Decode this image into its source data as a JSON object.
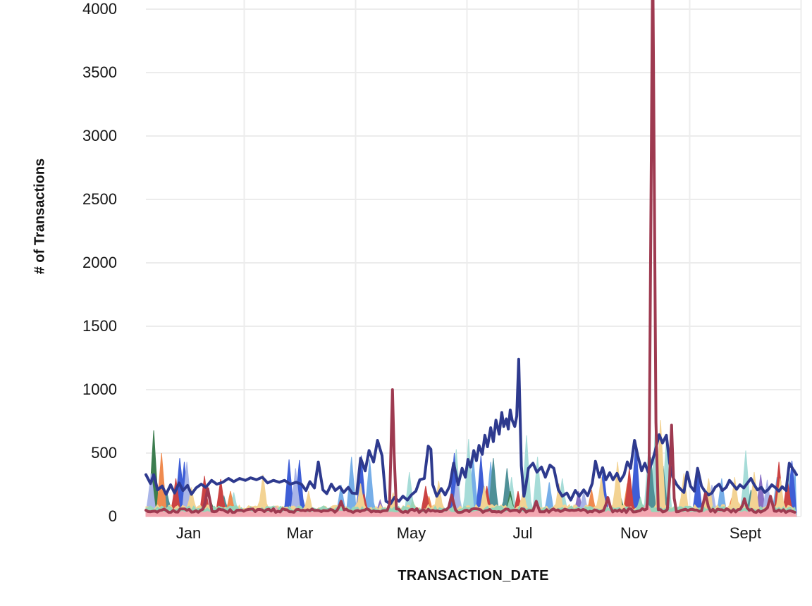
{
  "page": {
    "background": "#ffffff"
  },
  "chart_data": {
    "type": "line",
    "title": "",
    "xlabel": "TRANSACTION_DATE",
    "ylabel": "# of Transactions",
    "x_tick_labels": [
      "Jan",
      "Mar",
      "May",
      "Jul",
      "Nov",
      "Sept"
    ],
    "y_ticks": [
      0,
      500,
      1000,
      1500,
      2000,
      2500,
      3000,
      3500,
      4000
    ],
    "ylim": [
      0,
      4070
    ],
    "x_unit": "percent_of_axis",
    "grid": true,
    "grid_color": "#ececec",
    "tick_color": "#151515",
    "legend": "none",
    "note": "multi-series daily transaction counts; x given as percent across the date axis; minor series encoded as baseline noise (base/amp) plus explicit peaks [x,value]",
    "series": [
      {
        "name": "purple",
        "kind": "area",
        "color": "#8a70c4",
        "base": 12,
        "amp": 14,
        "seed": 7,
        "peaks": [
          [
            36,
            130
          ],
          [
            66.5,
            200
          ],
          [
            94.5,
            330
          ]
        ]
      },
      {
        "name": "light-blue",
        "kind": "area",
        "color": "#76aee8",
        "base": 22,
        "amp": 26,
        "seed": 2,
        "peaks": [
          [
            30,
            250
          ],
          [
            31.6,
            470
          ],
          [
            34.4,
            450
          ],
          [
            50.3,
            470
          ],
          [
            53,
            430
          ],
          [
            62,
            270
          ],
          [
            75.5,
            200
          ],
          [
            88.5,
            300
          ],
          [
            97,
            310
          ],
          [
            99.8,
            370
          ]
        ]
      },
      {
        "name": "pale-cyan",
        "kind": "area",
        "color": "#a6dcd8",
        "base": 28,
        "amp": 30,
        "seed": 3,
        "peaks": [
          [
            13.5,
            190
          ],
          [
            40.5,
            350
          ],
          [
            47.7,
            530
          ],
          [
            49.6,
            610
          ],
          [
            56.2,
            310
          ],
          [
            58.5,
            640
          ],
          [
            60.2,
            470
          ],
          [
            64,
            300
          ],
          [
            77.3,
            560
          ],
          [
            78.4,
            790
          ],
          [
            80,
            600
          ],
          [
            92.2,
            520
          ],
          [
            99,
            340
          ]
        ]
      },
      {
        "name": "teal",
        "kind": "area",
        "color": "#4f9097",
        "base": 38,
        "amp": 30,
        "seed": 4,
        "peaks": [
          [
            3.2,
            200
          ],
          [
            12,
            160
          ],
          [
            53.4,
            460
          ],
          [
            55.5,
            380
          ],
          [
            77.6,
            470
          ],
          [
            79.5,
            400
          ],
          [
            93,
            210
          ]
        ]
      },
      {
        "name": "green",
        "kind": "area",
        "color": "#3c7d4f",
        "base": 26,
        "amp": 22,
        "seed": 5,
        "peaks": [
          [
            1.2,
            680
          ],
          [
            10,
            120
          ],
          [
            56,
            200
          ],
          [
            73,
            150
          ]
        ]
      },
      {
        "name": "orange",
        "kind": "area",
        "color": "#ef8a4f",
        "base": 26,
        "amp": 22,
        "seed": 6,
        "peaks": [
          [
            2.4,
            500
          ],
          [
            13,
            200
          ],
          [
            43.5,
            160
          ],
          [
            68.5,
            210
          ],
          [
            74,
            260
          ],
          [
            90,
            140
          ]
        ]
      },
      {
        "name": "royal-blue",
        "kind": "area",
        "color": "#3e5ed6",
        "base": 28,
        "amp": 34,
        "seed": 8,
        "peaks": [
          [
            5.2,
            460
          ],
          [
            5.9,
            430
          ],
          [
            22,
            450
          ],
          [
            23.6,
            445
          ],
          [
            33.1,
            480
          ],
          [
            47.4,
            500
          ],
          [
            51.5,
            480
          ],
          [
            70.3,
            380
          ],
          [
            75.3,
            600
          ],
          [
            84.8,
            370
          ],
          [
            99.3,
            440
          ]
        ]
      },
      {
        "name": "red",
        "kind": "area",
        "color": "#cb4343",
        "base": 26,
        "amp": 28,
        "seed": 9,
        "peaks": [
          [
            4.6,
            300
          ],
          [
            9,
            320
          ],
          [
            11.5,
            295
          ],
          [
            33.5,
            180
          ],
          [
            43,
            240
          ],
          [
            52.4,
            240
          ],
          [
            57.2,
            200
          ],
          [
            74.3,
            380
          ],
          [
            97.3,
            430
          ],
          [
            98.6,
            300
          ]
        ]
      },
      {
        "name": "periwinkle",
        "kind": "area",
        "color": "#a9b5e8",
        "base": 16,
        "amp": 18,
        "seed": 10,
        "peaks": [
          [
            0.8,
            340
          ],
          [
            6.3,
            430
          ],
          [
            23,
            380
          ],
          [
            47.8,
            300
          ],
          [
            67.3,
            200
          ],
          [
            87,
            250
          ],
          [
            95.5,
            290
          ]
        ]
      },
      {
        "name": "khaki",
        "kind": "area",
        "color": "#f3d393",
        "base": 50,
        "amp": 45,
        "seed": 11,
        "peaks": [
          [
            7,
            230
          ],
          [
            18,
            330
          ],
          [
            25,
            200
          ],
          [
            33,
            260
          ],
          [
            38,
            190
          ],
          [
            45,
            280
          ],
          [
            52,
            240
          ],
          [
            58,
            210
          ],
          [
            63.5,
            260
          ],
          [
            70,
            310
          ],
          [
            72.5,
            430
          ],
          [
            79.1,
            760
          ],
          [
            82.7,
            340
          ],
          [
            86.5,
            300
          ],
          [
            90.5,
            310
          ],
          [
            93.5,
            350
          ],
          [
            97.5,
            300
          ]
        ]
      },
      {
        "name": "mint",
        "kind": "area",
        "color": "#97d6b9",
        "base": 48,
        "amp": 36,
        "seed": 12,
        "peaks": [
          [
            41,
            130
          ],
          [
            56,
            150
          ],
          [
            76,
            150
          ],
          [
            96,
            140
          ]
        ]
      },
      {
        "name": "pink",
        "kind": "area",
        "color": "#f3a7b1",
        "base": 30,
        "amp": 20,
        "seed": 13,
        "peaks": [
          [
            20,
            80
          ],
          [
            60,
            95
          ],
          [
            77,
            125
          ],
          [
            96,
            105
          ]
        ]
      },
      {
        "name": "navy",
        "kind": "line",
        "color": "#2e3a8e",
        "stroke_width": 4,
        "points": [
          [
            0,
            330
          ],
          [
            0.7,
            260
          ],
          [
            1.2,
            330
          ],
          [
            1.8,
            210
          ],
          [
            2.5,
            240
          ],
          [
            3.1,
            175
          ],
          [
            3.8,
            250
          ],
          [
            4.4,
            185
          ],
          [
            5.1,
            265
          ],
          [
            5.7,
            205
          ],
          [
            6.4,
            245
          ],
          [
            7,
            175
          ],
          [
            7.7,
            225
          ],
          [
            8.5,
            255
          ],
          [
            9.2,
            230
          ],
          [
            10.1,
            285
          ],
          [
            10.9,
            255
          ],
          [
            11.8,
            270
          ],
          [
            12.7,
            300
          ],
          [
            13.5,
            275
          ],
          [
            14.4,
            300
          ],
          [
            15.3,
            285
          ],
          [
            16.1,
            305
          ],
          [
            17,
            290
          ],
          [
            17.9,
            310
          ],
          [
            18.7,
            265
          ],
          [
            19.6,
            285
          ],
          [
            20.5,
            270
          ],
          [
            21.3,
            285
          ],
          [
            22.2,
            255
          ],
          [
            23.1,
            270
          ],
          [
            23.9,
            255
          ],
          [
            24.6,
            205
          ],
          [
            25.2,
            275
          ],
          [
            25.9,
            225
          ],
          [
            26.5,
            430
          ],
          [
            27.2,
            210
          ],
          [
            27.8,
            180
          ],
          [
            28.5,
            255
          ],
          [
            29.1,
            205
          ],
          [
            29.8,
            235
          ],
          [
            30.4,
            190
          ],
          [
            31.1,
            230
          ],
          [
            31.7,
            185
          ],
          [
            32.4,
            180
          ],
          [
            33,
            460
          ],
          [
            33.7,
            360
          ],
          [
            34.3,
            520
          ],
          [
            35,
            430
          ],
          [
            35.6,
            600
          ],
          [
            36.3,
            480
          ],
          [
            36.9,
            120
          ],
          [
            37.6,
            100
          ],
          [
            38.2,
            150
          ],
          [
            38.9,
            120
          ],
          [
            39.5,
            160
          ],
          [
            40.2,
            130
          ],
          [
            40.8,
            170
          ],
          [
            41.5,
            200
          ],
          [
            42.1,
            290
          ],
          [
            42.8,
            300
          ],
          [
            43.4,
            555
          ],
          [
            43.8,
            530
          ],
          [
            44.1,
            250
          ],
          [
            44.7,
            160
          ],
          [
            45.4,
            220
          ],
          [
            46,
            170
          ],
          [
            46.7,
            240
          ],
          [
            47.3,
            420
          ],
          [
            48,
            250
          ],
          [
            48.6,
            380
          ],
          [
            49.1,
            310
          ],
          [
            49.5,
            450
          ],
          [
            49.9,
            390
          ],
          [
            50.4,
            520
          ],
          [
            50.8,
            440
          ],
          [
            51.2,
            560
          ],
          [
            51.7,
            490
          ],
          [
            52.1,
            640
          ],
          [
            52.5,
            550
          ],
          [
            53,
            700
          ],
          [
            53.4,
            590
          ],
          [
            53.8,
            760
          ],
          [
            54.3,
            650
          ],
          [
            54.7,
            820
          ],
          [
            55,
            710
          ],
          [
            55.4,
            770
          ],
          [
            55.7,
            690
          ],
          [
            56,
            840
          ],
          [
            56.3,
            760
          ],
          [
            56.7,
            710
          ],
          [
            57,
            790
          ],
          [
            57.3,
            1240
          ],
          [
            57.7,
            400
          ],
          [
            58.1,
            160
          ],
          [
            58.4,
            240
          ],
          [
            58.8,
            380
          ],
          [
            59.5,
            420
          ],
          [
            60.1,
            350
          ],
          [
            60.8,
            390
          ],
          [
            61.4,
            310
          ],
          [
            62.1,
            405
          ],
          [
            62.7,
            380
          ],
          [
            63.4,
            210
          ],
          [
            64,
            160
          ],
          [
            64.7,
            185
          ],
          [
            65.3,
            130
          ],
          [
            66,
            205
          ],
          [
            66.6,
            160
          ],
          [
            67.3,
            210
          ],
          [
            67.9,
            165
          ],
          [
            68.6,
            260
          ],
          [
            69.1,
            435
          ],
          [
            69.7,
            310
          ],
          [
            70.2,
            385
          ],
          [
            70.7,
            290
          ],
          [
            71.3,
            345
          ],
          [
            71.8,
            290
          ],
          [
            72.4,
            340
          ],
          [
            72.9,
            280
          ],
          [
            73.5,
            330
          ],
          [
            74,
            430
          ],
          [
            74.5,
            380
          ],
          [
            75.1,
            600
          ],
          [
            75.6,
            480
          ],
          [
            76.2,
            360
          ],
          [
            76.7,
            420
          ],
          [
            77.2,
            350
          ],
          [
            77.8,
            430
          ],
          [
            78.3,
            520
          ],
          [
            78.9,
            645
          ],
          [
            79.4,
            580
          ],
          [
            80,
            640
          ],
          [
            80.5,
            420
          ],
          [
            81,
            310
          ],
          [
            81.6,
            250
          ],
          [
            82.1,
            220
          ],
          [
            82.7,
            190
          ],
          [
            83.2,
            350
          ],
          [
            83.7,
            240
          ],
          [
            84.3,
            200
          ],
          [
            84.8,
            380
          ],
          [
            85.4,
            240
          ],
          [
            85.9,
            200
          ],
          [
            86.5,
            170
          ],
          [
            87,
            185
          ],
          [
            87.5,
            230
          ],
          [
            88.1,
            255
          ],
          [
            88.6,
            205
          ],
          [
            89.2,
            230
          ],
          [
            89.7,
            285
          ],
          [
            90.2,
            255
          ],
          [
            90.8,
            215
          ],
          [
            91.3,
            250
          ],
          [
            91.9,
            225
          ],
          [
            92.4,
            260
          ],
          [
            93,
            300
          ],
          [
            93.5,
            250
          ],
          [
            94,
            210
          ],
          [
            94.6,
            230
          ],
          [
            95.1,
            190
          ],
          [
            95.7,
            215
          ],
          [
            96.2,
            250
          ],
          [
            96.7,
            230
          ],
          [
            97.3,
            200
          ],
          [
            97.8,
            235
          ],
          [
            98.4,
            205
          ],
          [
            98.9,
            420
          ],
          [
            99.5,
            370
          ],
          [
            100,
            330
          ]
        ]
      },
      {
        "name": "maroon",
        "kind": "line",
        "color": "#9e3a50",
        "stroke_width": 4,
        "base": 32,
        "amp": 30,
        "seed": 14,
        "peaks": [
          [
            9.5,
            220
          ],
          [
            30,
            120
          ],
          [
            37.9,
            1000,
            0.5
          ],
          [
            47,
            170
          ],
          [
            60,
            120
          ],
          [
            71,
            150
          ],
          [
            77.9,
            4450,
            0.6
          ],
          [
            80.8,
            720,
            0.5
          ],
          [
            86,
            180
          ],
          [
            92,
            140
          ],
          [
            96,
            160
          ]
        ]
      }
    ]
  }
}
